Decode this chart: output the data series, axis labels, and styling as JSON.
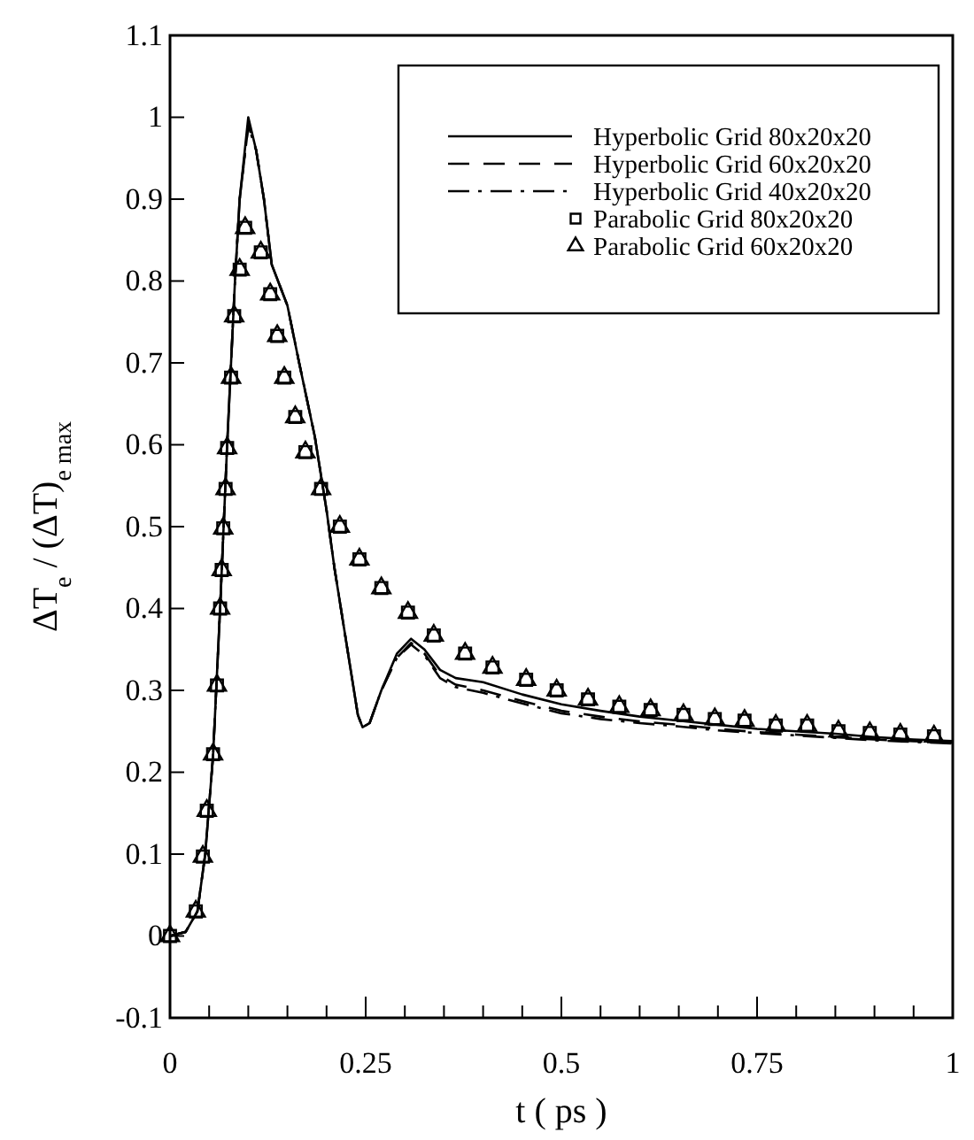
{
  "chart_data": {
    "type": "line",
    "xlabel": "t ( ps )",
    "ylabel": "ΔT$_{e}$ / (ΔT)$_{e max}$",
    "xlim": [
      0,
      1
    ],
    "ylim": [
      -0.1,
      1.1
    ],
    "xticks": [
      0,
      {
        "value": 0.05,
        "label": null
      },
      {
        "value": 0.1,
        "label": null
      },
      {
        "value": 0.15,
        "label": null
      },
      {
        "value": 0.2,
        "label": null
      },
      0.25,
      {
        "value": 0.3,
        "label": null
      },
      {
        "value": 0.35,
        "label": null
      },
      {
        "value": 0.4,
        "label": null
      },
      {
        "value": 0.45,
        "label": null
      },
      0.5,
      {
        "value": 0.55,
        "label": null
      },
      {
        "value": 0.6,
        "label": null
      },
      {
        "value": 0.65,
        "label": null
      },
      {
        "value": 0.7,
        "label": null
      },
      0.75,
      {
        "value": 0.8,
        "label": null
      },
      {
        "value": 0.85,
        "label": null
      },
      {
        "value": 0.9,
        "label": null
      },
      {
        "value": 0.95,
        "label": null
      },
      1
    ],
    "yticks": [
      -0.1,
      0,
      0.1,
      0.2,
      0.3,
      0.4,
      0.5,
      0.6,
      0.7,
      0.8,
      0.9,
      1,
      1.1
    ],
    "grid": false,
    "legend": "top right",
    "series": [
      {
        "name": "Hyperbolic Grid 80x20x20",
        "line_style": "solid",
        "color": "#000000",
        "x": [
          0,
          0.02,
          0.035,
          0.045,
          0.055,
          0.064,
          0.073,
          0.083,
          0.089,
          0.1,
          0.11,
          0.12,
          0.13,
          0.15,
          0.165,
          0.185,
          0.2,
          0.21,
          0.225,
          0.24,
          0.246,
          0.255,
          0.27,
          0.29,
          0.308,
          0.325,
          0.345,
          0.365,
          0.4,
          0.45,
          0.5,
          0.55,
          0.6,
          0.65,
          0.7,
          0.75,
          0.8,
          0.85,
          0.9,
          0.95,
          1
        ],
        "values": [
          0,
          0.005,
          0.03,
          0.1,
          0.22,
          0.4,
          0.6,
          0.8,
          0.9,
          1,
          0.96,
          0.9,
          0.82,
          0.77,
          0.7,
          0.61,
          0.52,
          0.45,
          0.36,
          0.27,
          0.255,
          0.26,
          0.3,
          0.345,
          0.363,
          0.35,
          0.325,
          0.315,
          0.31,
          0.295,
          0.283,
          0.275,
          0.268,
          0.263,
          0.258,
          0.253,
          0.25,
          0.247,
          0.243,
          0.24,
          0.238
        ]
      },
      {
        "name": "Hyperbolic Grid 60x20x20",
        "line_style": "dashed",
        "color": "#000000",
        "x": [
          0,
          0.02,
          0.035,
          0.045,
          0.055,
          0.064,
          0.073,
          0.083,
          0.089,
          0.1,
          0.11,
          0.12,
          0.13,
          0.15,
          0.165,
          0.185,
          0.2,
          0.21,
          0.225,
          0.24,
          0.246,
          0.255,
          0.27,
          0.29,
          0.308,
          0.325,
          0.345,
          0.365,
          0.4,
          0.45,
          0.5,
          0.55,
          0.6,
          0.65,
          0.7,
          0.75,
          0.8,
          0.85,
          0.9,
          0.95,
          1
        ],
        "values": [
          0,
          0.005,
          0.03,
          0.1,
          0.22,
          0.4,
          0.6,
          0.8,
          0.9,
          0.99,
          0.96,
          0.9,
          0.82,
          0.77,
          0.7,
          0.61,
          0.52,
          0.45,
          0.36,
          0.27,
          0.255,
          0.26,
          0.3,
          0.34,
          0.358,
          0.345,
          0.318,
          0.307,
          0.3,
          0.287,
          0.275,
          0.268,
          0.262,
          0.258,
          0.253,
          0.249,
          0.246,
          0.243,
          0.24,
          0.238,
          0.236
        ]
      },
      {
        "name": "Hyperbolic Grid 40x20x20",
        "line_style": "dashdot",
        "color": "#000000",
        "x": [
          0,
          0.02,
          0.035,
          0.045,
          0.055,
          0.064,
          0.073,
          0.083,
          0.089,
          0.1,
          0.11,
          0.12,
          0.13,
          0.15,
          0.165,
          0.185,
          0.2,
          0.21,
          0.225,
          0.24,
          0.246,
          0.255,
          0.27,
          0.29,
          0.308,
          0.325,
          0.345,
          0.365,
          0.4,
          0.45,
          0.5,
          0.55,
          0.6,
          0.65,
          0.7,
          0.75,
          0.8,
          0.85,
          0.9,
          0.95,
          1
        ],
        "values": [
          0,
          0.005,
          0.03,
          0.1,
          0.22,
          0.4,
          0.6,
          0.8,
          0.9,
          0.99,
          0.96,
          0.9,
          0.82,
          0.77,
          0.7,
          0.61,
          0.52,
          0.45,
          0.36,
          0.27,
          0.255,
          0.26,
          0.3,
          0.34,
          0.356,
          0.343,
          0.315,
          0.304,
          0.297,
          0.284,
          0.272,
          0.265,
          0.26,
          0.256,
          0.251,
          0.248,
          0.245,
          0.242,
          0.239,
          0.237,
          0.235
        ]
      },
      {
        "name": "Parabolic Grid 80x20x20",
        "type": "scatter",
        "marker": "square",
        "color": "#000000",
        "x": [
          0,
          0.033,
          0.042,
          0.047,
          0.055,
          0.06,
          0.064,
          0.066,
          0.068,
          0.071,
          0.073,
          0.078,
          0.082,
          0.089,
          0.096,
          0.116,
          0.128,
          0.137,
          0.146,
          0.16,
          0.173,
          0.193,
          0.217,
          0.242,
          0.27,
          0.304,
          0.337,
          0.377,
          0.412,
          0.455,
          0.494,
          0.534,
          0.574,
          0.614,
          0.656,
          0.696,
          0.734,
          0.774,
          0.814,
          0.854,
          0.894,
          0.933,
          0.976
        ],
        "values": [
          0,
          0.03,
          0.097,
          0.153,
          0.222,
          0.306,
          0.4,
          0.447,
          0.498,
          0.546,
          0.596,
          0.682,
          0.757,
          0.814,
          0.865,
          0.835,
          0.784,
          0.733,
          0.682,
          0.634,
          0.591,
          0.546,
          0.5,
          0.46,
          0.425,
          0.395,
          0.367,
          0.345,
          0.328,
          0.313,
          0.3,
          0.289,
          0.28,
          0.276,
          0.27,
          0.265,
          0.263,
          0.257,
          0.257,
          0.25,
          0.248,
          0.246,
          0.244
        ]
      },
      {
        "name": "Parabolic Grid 60x20x20",
        "type": "scatter",
        "marker": "triangle",
        "color": "#000000",
        "x": [
          0,
          0.033,
          0.042,
          0.047,
          0.055,
          0.06,
          0.064,
          0.066,
          0.068,
          0.071,
          0.073,
          0.078,
          0.082,
          0.089,
          0.096,
          0.116,
          0.128,
          0.137,
          0.146,
          0.16,
          0.173,
          0.193,
          0.217,
          0.242,
          0.27,
          0.304,
          0.337,
          0.377,
          0.412,
          0.455,
          0.494,
          0.534,
          0.574,
          0.614,
          0.656,
          0.696,
          0.734,
          0.774,
          0.814,
          0.854,
          0.894,
          0.933,
          0.976
        ],
        "values": [
          0,
          0.03,
          0.097,
          0.153,
          0.222,
          0.306,
          0.4,
          0.447,
          0.498,
          0.546,
          0.596,
          0.682,
          0.757,
          0.814,
          0.865,
          0.835,
          0.784,
          0.733,
          0.682,
          0.634,
          0.591,
          0.546,
          0.5,
          0.46,
          0.425,
          0.395,
          0.367,
          0.345,
          0.328,
          0.313,
          0.3,
          0.289,
          0.28,
          0.276,
          0.27,
          0.265,
          0.263,
          0.257,
          0.257,
          0.25,
          0.248,
          0.246,
          0.244
        ]
      }
    ]
  }
}
